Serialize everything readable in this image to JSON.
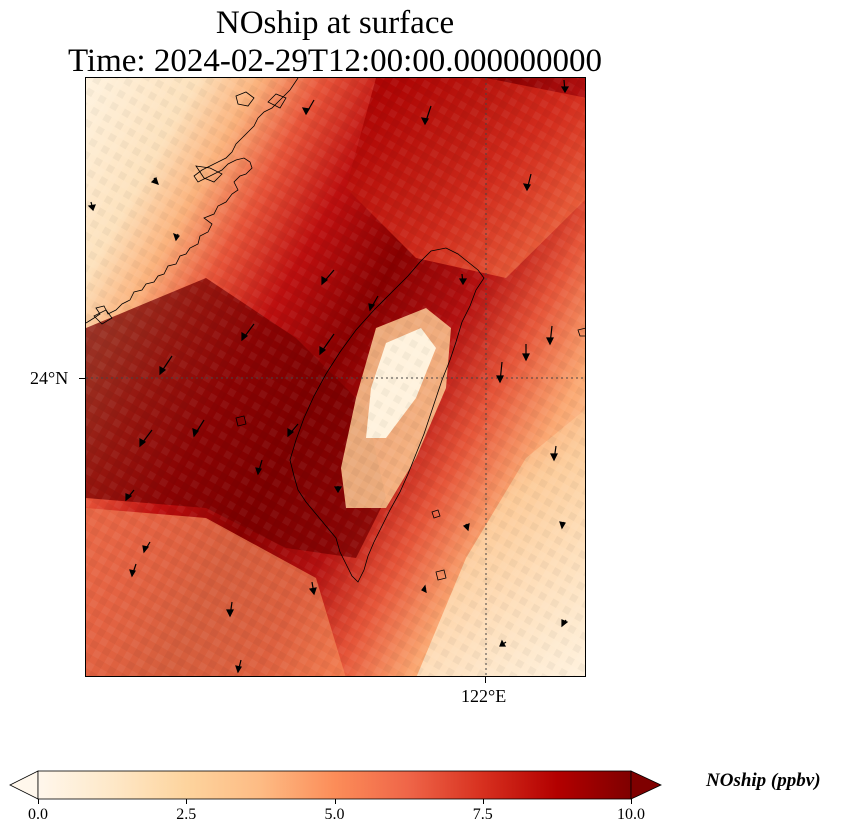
{
  "title": {
    "line1": "NOship at surface",
    "line2": "Time: 2024-02-29T12:00:00.000000000"
  },
  "axes": {
    "lat_label": "24°N",
    "lon_label": "122°E"
  },
  "colorbar": {
    "label": "NOship (ppbv)",
    "min": 0.0,
    "max": 10.0,
    "ticks": [
      "0.0",
      "2.5",
      "5.0",
      "7.5",
      "10.0"
    ],
    "extend": "both",
    "colormap": "OrRd",
    "colors": [
      "#fff7ec",
      "#fee8c8",
      "#fdd49e",
      "#fdbb84",
      "#fc8d59",
      "#ef6548",
      "#d7301f",
      "#b30000",
      "#7f0000"
    ]
  },
  "map_data": {
    "field": "NOship",
    "units": "ppbv",
    "gridlines": "dotted",
    "coastline": true,
    "wind_vectors": true
  }
}
